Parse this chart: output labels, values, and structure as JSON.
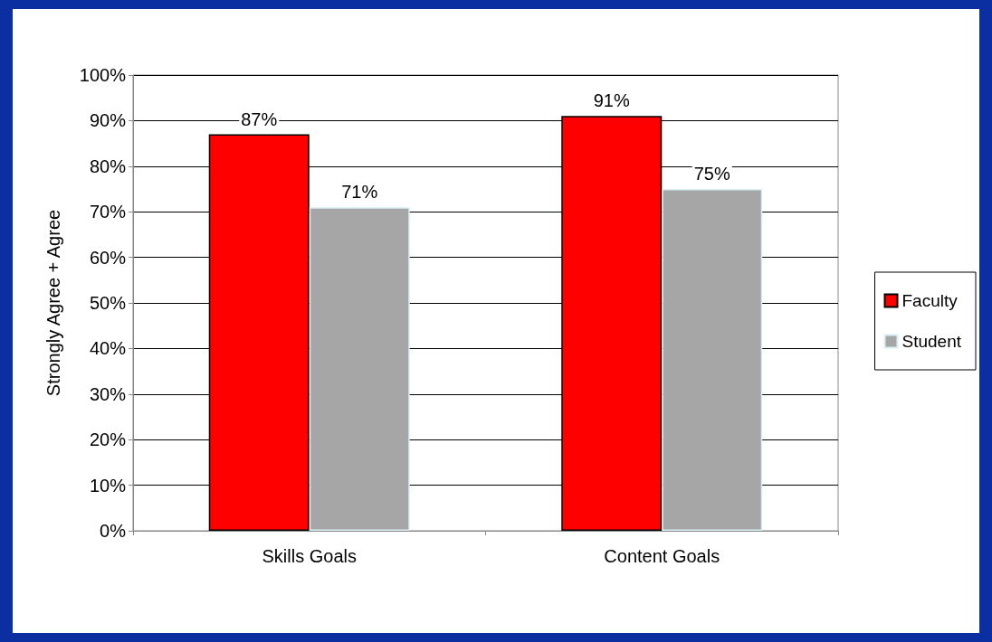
{
  "chart_data": {
    "type": "bar",
    "ylabel": "Strongly Agree + Agree",
    "categories": [
      "Skills Goals",
      "Content Goals"
    ],
    "series": [
      {
        "name": "Faculty",
        "color": "#ff0000",
        "values": [
          87,
          91
        ],
        "value_labels": [
          "87%",
          "91%"
        ]
      },
      {
        "name": "Student",
        "color": "#a6a6a6",
        "values": [
          71,
          75
        ],
        "value_labels": [
          "71%",
          "75%"
        ]
      }
    ],
    "ylim": [
      0,
      100
    ],
    "yticks": [
      {
        "value": 0,
        "label": "0%"
      },
      {
        "value": 10,
        "label": "10%"
      },
      {
        "value": 20,
        "label": "20%"
      },
      {
        "value": 30,
        "label": "30%"
      },
      {
        "value": 40,
        "label": "40%"
      },
      {
        "value": 50,
        "label": "50%"
      },
      {
        "value": 60,
        "label": "60%"
      },
      {
        "value": 70,
        "label": "70%"
      },
      {
        "value": 80,
        "label": "80%"
      },
      {
        "value": 90,
        "label": "90%"
      },
      {
        "value": 100,
        "label": "100%"
      }
    ],
    "grid": "y",
    "legend": "right"
  }
}
